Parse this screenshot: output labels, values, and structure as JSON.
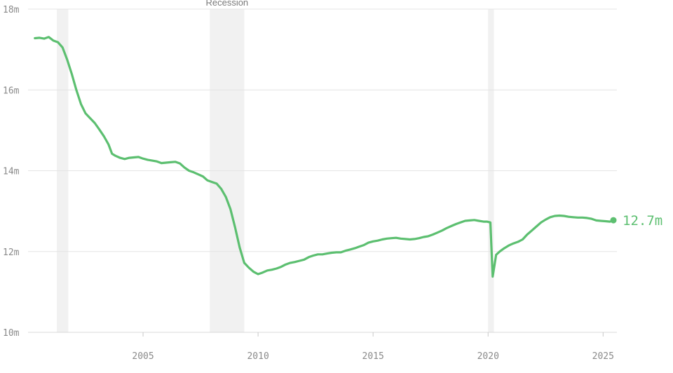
{
  "chart_data": {
    "type": "line",
    "title": "",
    "xlabel": "",
    "ylabel": "",
    "xlim": [
      2000.0,
      2025.6
    ],
    "ylim": [
      10,
      18
    ],
    "x_ticks": [
      {
        "value": 2005,
        "label": "2005"
      },
      {
        "value": 2010,
        "label": "2010"
      },
      {
        "value": 2015,
        "label": "2015"
      },
      {
        "value": 2020,
        "label": "2020"
      },
      {
        "value": 2025,
        "label": "2025"
      }
    ],
    "y_ticks": [
      {
        "value": 10,
        "label": "10m"
      },
      {
        "value": 12,
        "label": "12m"
      },
      {
        "value": 14,
        "label": "14m"
      },
      {
        "value": 16,
        "label": "16m"
      },
      {
        "value": 18,
        "label": "18m"
      }
    ],
    "grid": "horizontal",
    "recession_label": "Recession",
    "recessions": [
      {
        "start": 2001.25,
        "end": 2001.75
      },
      {
        "start": 2007.9,
        "end": 2009.4
      },
      {
        "start": 2020.0,
        "end": 2020.25
      }
    ],
    "series": [
      {
        "color": "#5cbf70",
        "end_label": "12.7m",
        "points": [
          [
            2000.3,
            17.28
          ],
          [
            2000.5,
            17.29
          ],
          [
            2000.7,
            17.27
          ],
          [
            2000.9,
            17.31
          ],
          [
            2001.1,
            17.22
          ],
          [
            2001.3,
            17.18
          ],
          [
            2001.5,
            17.05
          ],
          [
            2001.7,
            16.75
          ],
          [
            2001.9,
            16.4
          ],
          [
            2002.1,
            16.0
          ],
          [
            2002.3,
            15.65
          ],
          [
            2002.5,
            15.42
          ],
          [
            2002.7,
            15.3
          ],
          [
            2002.9,
            15.18
          ],
          [
            2003.1,
            15.02
          ],
          [
            2003.3,
            14.85
          ],
          [
            2003.5,
            14.65
          ],
          [
            2003.65,
            14.42
          ],
          [
            2003.8,
            14.37
          ],
          [
            2004.0,
            14.32
          ],
          [
            2004.2,
            14.29
          ],
          [
            2004.4,
            14.32
          ],
          [
            2004.6,
            14.33
          ],
          [
            2004.8,
            14.34
          ],
          [
            2005.0,
            14.3
          ],
          [
            2005.2,
            14.27
          ],
          [
            2005.4,
            14.25
          ],
          [
            2005.6,
            14.23
          ],
          [
            2005.8,
            14.19
          ],
          [
            2006.0,
            14.2
          ],
          [
            2006.2,
            14.21
          ],
          [
            2006.4,
            14.22
          ],
          [
            2006.6,
            14.18
          ],
          [
            2006.8,
            14.08
          ],
          [
            2007.0,
            14.0
          ],
          [
            2007.2,
            13.96
          ],
          [
            2007.4,
            13.91
          ],
          [
            2007.6,
            13.86
          ],
          [
            2007.8,
            13.76
          ],
          [
            2008.0,
            13.72
          ],
          [
            2008.2,
            13.68
          ],
          [
            2008.4,
            13.55
          ],
          [
            2008.6,
            13.35
          ],
          [
            2008.8,
            13.05
          ],
          [
            2009.0,
            12.6
          ],
          [
            2009.2,
            12.1
          ],
          [
            2009.4,
            11.72
          ],
          [
            2009.6,
            11.6
          ],
          [
            2009.8,
            11.5
          ],
          [
            2010.0,
            11.44
          ],
          [
            2010.2,
            11.48
          ],
          [
            2010.4,
            11.53
          ],
          [
            2010.6,
            11.55
          ],
          [
            2010.8,
            11.58
          ],
          [
            2011.0,
            11.62
          ],
          [
            2011.2,
            11.68
          ],
          [
            2011.4,
            11.72
          ],
          [
            2011.6,
            11.74
          ],
          [
            2011.8,
            11.77
          ],
          [
            2012.0,
            11.8
          ],
          [
            2012.2,
            11.86
          ],
          [
            2012.4,
            11.9
          ],
          [
            2012.6,
            11.93
          ],
          [
            2012.8,
            11.93
          ],
          [
            2013.0,
            11.95
          ],
          [
            2013.2,
            11.97
          ],
          [
            2013.4,
            11.98
          ],
          [
            2013.6,
            11.98
          ],
          [
            2013.8,
            12.02
          ],
          [
            2014.0,
            12.05
          ],
          [
            2014.2,
            12.08
          ],
          [
            2014.4,
            12.12
          ],
          [
            2014.6,
            12.16
          ],
          [
            2014.8,
            12.22
          ],
          [
            2015.0,
            12.25
          ],
          [
            2015.2,
            12.27
          ],
          [
            2015.4,
            12.3
          ],
          [
            2015.6,
            12.32
          ],
          [
            2015.8,
            12.33
          ],
          [
            2016.0,
            12.34
          ],
          [
            2016.2,
            12.32
          ],
          [
            2016.4,
            12.31
          ],
          [
            2016.6,
            12.3
          ],
          [
            2016.8,
            12.31
          ],
          [
            2017.0,
            12.33
          ],
          [
            2017.2,
            12.36
          ],
          [
            2017.4,
            12.38
          ],
          [
            2017.6,
            12.42
          ],
          [
            2017.8,
            12.47
          ],
          [
            2018.0,
            12.52
          ],
          [
            2018.2,
            12.58
          ],
          [
            2018.4,
            12.63
          ],
          [
            2018.6,
            12.68
          ],
          [
            2018.8,
            12.72
          ],
          [
            2019.0,
            12.76
          ],
          [
            2019.2,
            12.77
          ],
          [
            2019.4,
            12.78
          ],
          [
            2019.6,
            12.76
          ],
          [
            2019.8,
            12.74
          ],
          [
            2019.95,
            12.74
          ],
          [
            2020.1,
            12.72
          ],
          [
            2020.2,
            11.38
          ],
          [
            2020.35,
            11.92
          ],
          [
            2020.5,
            12.0
          ],
          [
            2020.7,
            12.08
          ],
          [
            2020.9,
            12.15
          ],
          [
            2021.1,
            12.2
          ],
          [
            2021.3,
            12.24
          ],
          [
            2021.5,
            12.3
          ],
          [
            2021.7,
            12.42
          ],
          [
            2021.9,
            12.52
          ],
          [
            2022.1,
            12.62
          ],
          [
            2022.3,
            12.72
          ],
          [
            2022.5,
            12.79
          ],
          [
            2022.7,
            12.85
          ],
          [
            2022.9,
            12.88
          ],
          [
            2023.1,
            12.89
          ],
          [
            2023.3,
            12.88
          ],
          [
            2023.5,
            12.86
          ],
          [
            2023.7,
            12.85
          ],
          [
            2023.9,
            12.84
          ],
          [
            2024.1,
            12.84
          ],
          [
            2024.3,
            12.83
          ],
          [
            2024.5,
            12.81
          ],
          [
            2024.7,
            12.77
          ],
          [
            2024.9,
            12.76
          ],
          [
            2025.1,
            12.75
          ],
          [
            2025.3,
            12.74
          ]
        ]
      }
    ]
  }
}
